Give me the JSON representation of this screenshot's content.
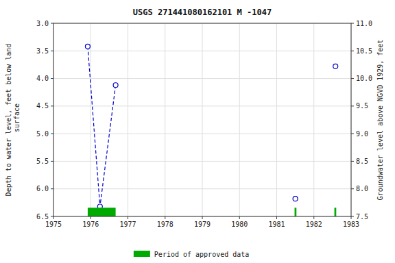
{
  "chart_data": {
    "type": "scatter",
    "title": "USGS 271441080162101 M  -1047",
    "ylabel": "Depth to water level, feet below land\n surface",
    "y2label": "Groundwater level above NGVD 1929, feet",
    "series": [
      {
        "type": "line",
        "line_style": "dashed",
        "color": "#0000cc",
        "x": [
          1975.92,
          1976.25,
          1976.67
        ],
        "values": [
          3.42,
          6.32,
          4.12
        ]
      },
      {
        "type": "scatter",
        "marker": "circle",
        "color": "#0000cc",
        "x": [
          1975.92,
          1976.25,
          1976.67,
          1981.5,
          1982.58
        ],
        "values": [
          3.42,
          6.32,
          4.12,
          6.18,
          3.78
        ]
      },
      {
        "type": "period",
        "name": "Period of approved data",
        "color": "#00aa00",
        "x": [
          1975.92,
          1981.48,
          1982.55
        ],
        "width": [
          0.75,
          0.05,
          0.05
        ]
      }
    ],
    "xlim": [
      1975,
      1983
    ],
    "xticks": [
      1975,
      1976,
      1977,
      1978,
      1979,
      1980,
      1981,
      1982,
      1983
    ],
    "ylim": [
      6.5,
      3.0
    ],
    "yticks": [
      {
        "value": 3.0,
        "label": "3.0"
      },
      3.5,
      {
        "value": 4.0,
        "label": "4.0"
      },
      4.5,
      {
        "value": 5.0,
        "label": "5.0"
      },
      5.5,
      {
        "value": 6.0,
        "label": "6.0"
      },
      6.5
    ],
    "y2lim": [
      7.5,
      11.0
    ],
    "y2ticks": [
      {
        "value": 11.0,
        "label": "11.0"
      },
      10.5,
      {
        "value": 10.0,
        "label": "10.0"
      },
      9.5,
      {
        "value": 9.0,
        "label": "9.0"
      },
      8.5,
      {
        "value": 8.0,
        "label": "8.0"
      },
      7.5
    ],
    "grid": true,
    "legend": "bottom"
  }
}
